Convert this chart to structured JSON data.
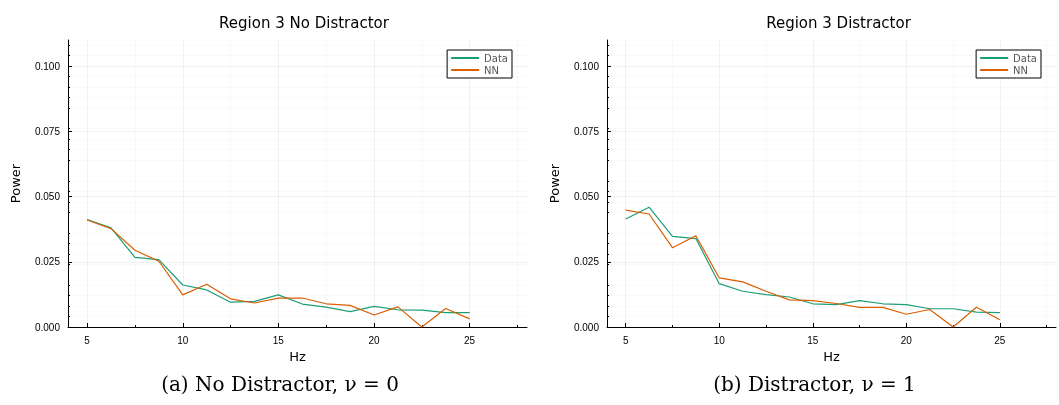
{
  "chart_data": [
    {
      "type": "line",
      "title": "Region 3 No Distractor",
      "xlabel": "Hz",
      "ylabel": "Power",
      "x": [
        5,
        6.25,
        7.5,
        8.75,
        10,
        11.25,
        12.5,
        13.75,
        15,
        16.25,
        17.5,
        18.75,
        20,
        21.25,
        22.5,
        23.75,
        25
      ],
      "series": [
        {
          "name": "Data",
          "color": "#1b9e77",
          "values": [
            0.0412,
            0.038,
            0.0267,
            0.0258,
            0.0161,
            0.0142,
            0.0095,
            0.0098,
            0.0123,
            0.0088,
            0.0076,
            0.0059,
            0.0079,
            0.0066,
            0.0065,
            0.0055,
            0.0055
          ]
        },
        {
          "name": "NN",
          "color": "#d95f02",
          "values": [
            0.041,
            0.0377,
            0.0294,
            0.0252,
            0.0123,
            0.0164,
            0.0108,
            0.0092,
            0.0111,
            0.0111,
            0.0089,
            0.0083,
            0.0046,
            0.0077,
            0.0,
            0.0071,
            0.0031
          ]
        }
      ],
      "xlim": [
        4,
        28
      ],
      "xticks": [
        5,
        10,
        15,
        20,
        25
      ],
      "ylim": [
        0,
        0.11
      ],
      "yticks": [
        {
          "value": 0,
          "label": "0.000"
        },
        {
          "value": 0.025,
          "label": "0.025"
        },
        {
          "value": 0.05,
          "label": "0.050"
        },
        {
          "value": 0.075,
          "label": "0.075"
        },
        {
          "value": 0.1,
          "label": "0.100"
        }
      ],
      "grid": true,
      "legend": "top right",
      "marker": "none",
      "line_style": "solid",
      "annotations": [
        "(a) No Distractor, ν = 0"
      ]
    },
    {
      "type": "line",
      "title": "Region 3 Distractor",
      "xlabel": "Hz",
      "ylabel": "Power",
      "x": [
        5,
        6.25,
        7.5,
        8.75,
        10,
        11.25,
        12.5,
        13.75,
        15,
        16.25,
        17.5,
        18.75,
        20,
        21.25,
        22.5,
        23.75,
        25
      ],
      "series": [
        {
          "name": "Data",
          "color": "#1b9e77",
          "values": [
            0.0414,
            0.0459,
            0.0347,
            0.0339,
            0.0166,
            0.0137,
            0.0124,
            0.0115,
            0.0089,
            0.0086,
            0.0101,
            0.0089,
            0.0086,
            0.007,
            0.007,
            0.0057,
            0.0055
          ]
        },
        {
          "name": "NN",
          "color": "#d95f02",
          "values": [
            0.0448,
            0.0433,
            0.0304,
            0.035,
            0.0188,
            0.0173,
            0.0137,
            0.0104,
            0.0101,
            0.009,
            0.0075,
            0.0075,
            0.0049,
            0.0067,
            0.0,
            0.0076,
            0.0028
          ]
        }
      ],
      "xlim": [
        4,
        28
      ],
      "xticks": [
        5,
        10,
        15,
        20,
        25
      ],
      "ylim": [
        0,
        0.11
      ],
      "yticks": [
        {
          "value": 0,
          "label": "0.000"
        },
        {
          "value": 0.025,
          "label": "0.025"
        },
        {
          "value": 0.05,
          "label": "0.050"
        },
        {
          "value": 0.075,
          "label": "0.075"
        },
        {
          "value": 0.1,
          "label": "0.100"
        }
      ],
      "grid": true,
      "legend": "top right",
      "marker": "none",
      "line_style": "solid",
      "annotations": [
        "(b) Distractor, ν = 1"
      ]
    }
  ]
}
